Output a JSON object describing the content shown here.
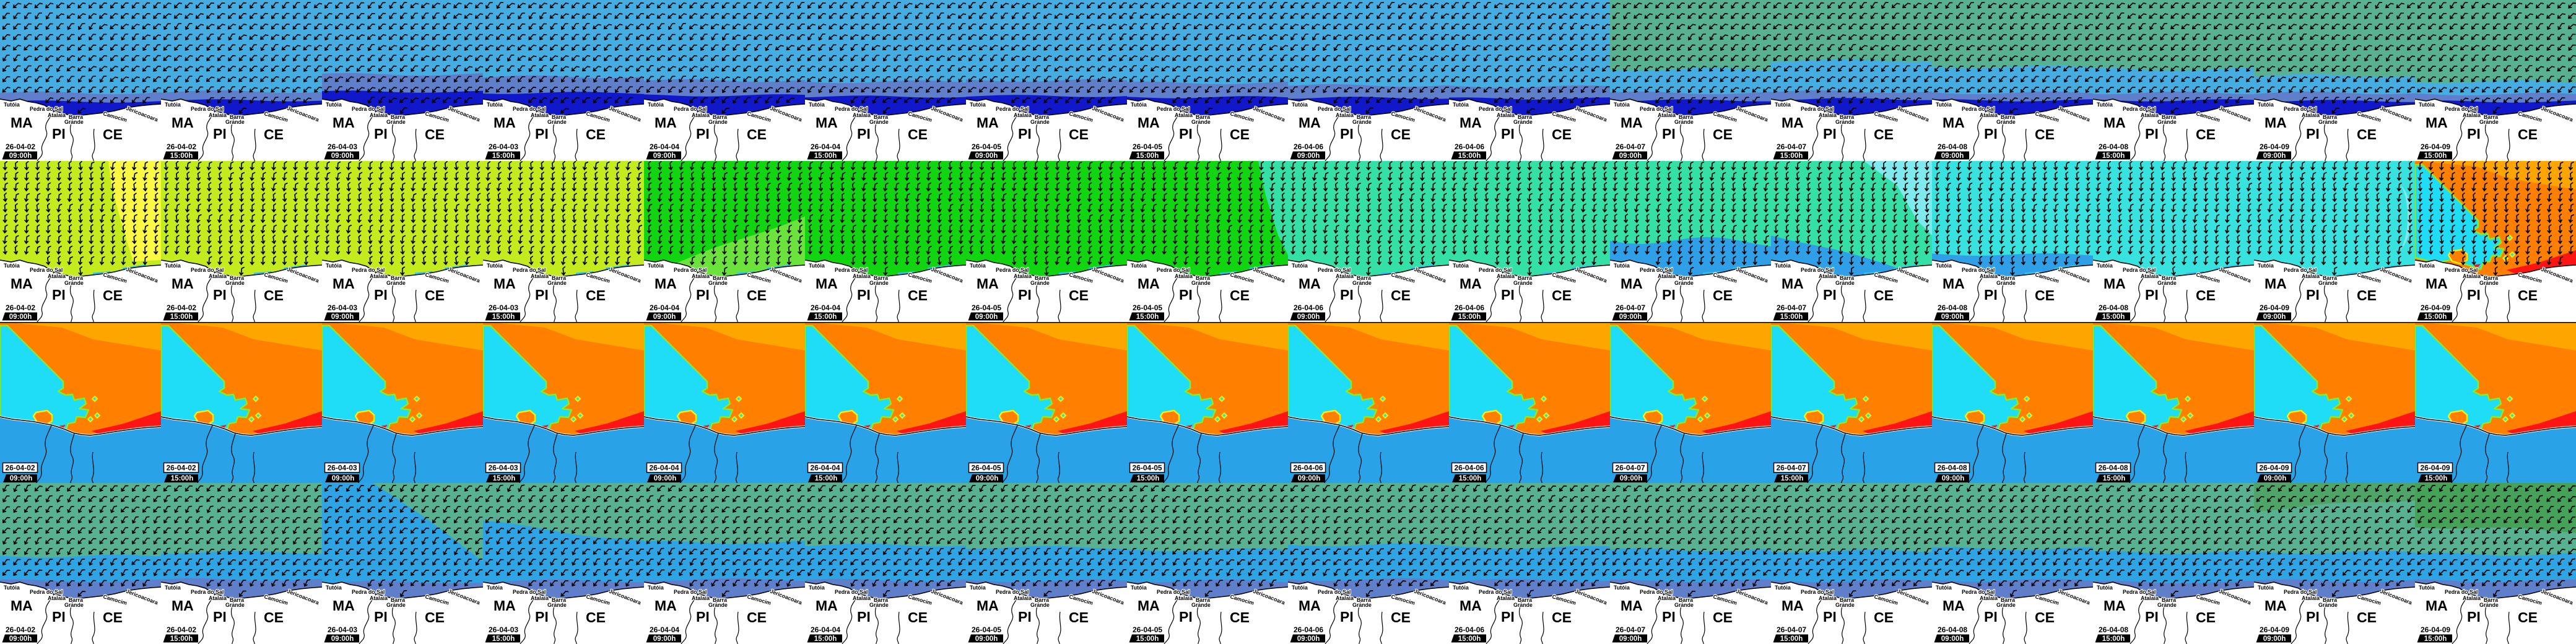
{
  "meta": {
    "description": "Grid of coastal surf/wind forecast map tiles for the MA/PI/CE coastline (Brazil), 16 time steps by 4 variables",
    "columns": 16,
    "rows": 4
  },
  "timesteps": [
    {
      "date": "26-04-02",
      "time": "09:00h"
    },
    {
      "date": "26-04-02",
      "time": "15:00h"
    },
    {
      "date": "26-04-03",
      "time": "09:00h"
    },
    {
      "date": "26-04-03",
      "time": "15:00h"
    },
    {
      "date": "26-04-04",
      "time": "09:00h"
    },
    {
      "date": "26-04-04",
      "time": "15:00h"
    },
    {
      "date": "26-04-05",
      "time": "09:00h"
    },
    {
      "date": "26-04-05",
      "time": "15:00h"
    },
    {
      "date": "26-04-06",
      "time": "09:00h"
    },
    {
      "date": "26-04-06",
      "time": "15:00h"
    },
    {
      "date": "26-04-07",
      "time": "09:00h"
    },
    {
      "date": "26-04-07",
      "time": "15:00h"
    },
    {
      "date": "26-04-08",
      "time": "09:00h"
    },
    {
      "date": "26-04-08",
      "time": "15:00h"
    },
    {
      "date": "26-04-09",
      "time": "09:00h"
    },
    {
      "date": "26-04-09",
      "time": "15:00h"
    }
  ],
  "map": {
    "state_labels": [
      "MA",
      "PI",
      "CE"
    ],
    "place_labels": [
      "Tutóia",
      "Pedra do Sal",
      "Atalaia",
      "Barra",
      "Grande",
      "Camocim",
      "Jericoacoara"
    ]
  },
  "palette": {
    "sea_blue": "#46ADE3",
    "periwinkle": "#5F7FCB",
    "navy": "#1118C9",
    "sage_green": "#58B291",
    "bright_blue": "#2EA4E5",
    "yellow_green": "#C3EB1E",
    "yellow": "#FBF943",
    "bright_green": "#12D512",
    "light_green": "#6CE23C",
    "mint": "#35E0A6",
    "cyan": "#38E2DE",
    "jag_blue": "#2F9FE8",
    "light_cyan": "#7FE9EE",
    "coast_strip_cyan": "#28C8F0",
    "pattern_orange": "#FF8000",
    "pattern_light_orange": "#FFA500",
    "pattern_cyan": "#1FDDF7",
    "pattern_red": "#FF1414",
    "pattern_land_blue": "#2AA2E8",
    "land": "#FFFFFF",
    "ink": "#000000",
    "badge_bg": "#000000",
    "badge_text": "#FFFFFF"
  },
  "rows": [
    {
      "name": "map-row-1",
      "has_arrows": true,
      "arrow_base_rotation": 40,
      "kind": "coast",
      "columns": [
        {
          "top": "#46ADE3",
          "mid": "#46ADE3",
          "l1": null,
          "l2": 150,
          "l3": 164,
          "band": "#5F7FCB",
          "coast": "#1118C9"
        },
        {
          "top": "#46ADE3",
          "mid": "#46ADE3",
          "l1": null,
          "l2": 148,
          "l3": 162,
          "band": "#5F7FCB",
          "coast": "#1118C9"
        },
        {
          "top": "#46ADE3",
          "mid": "#46ADE3",
          "l1": null,
          "l2": 120,
          "l3": 148,
          "band": "#5F7FCB",
          "coast": "#1118C9"
        },
        {
          "top": "#46ADE3",
          "mid": "#46ADE3",
          "l1": null,
          "l2": 124,
          "l3": 150,
          "band": "#5F7FCB",
          "coast": "#1118C9"
        },
        {
          "top": "#46ADE3",
          "mid": "#46ADE3",
          "l1": null,
          "l2": 130,
          "l3": 154,
          "band": "#5F7FCB",
          "coast": "#1118C9"
        },
        {
          "top": "#46ADE3",
          "mid": "#46ADE3",
          "l1": null,
          "l2": 132,
          "l3": 156,
          "band": "#5F7FCB",
          "coast": "#1118C9"
        },
        {
          "top": "#46ADE3",
          "mid": "#46ADE3",
          "l1": null,
          "l2": 130,
          "l3": 155,
          "band": "#5F7FCB",
          "coast": "#1118C9"
        },
        {
          "top": "#46ADE3",
          "mid": "#46ADE3",
          "l1": null,
          "l2": 134,
          "l3": 157,
          "band": "#5F7FCB",
          "coast": "#1118C9"
        },
        {
          "top": "#46ADE3",
          "mid": "#46ADE3",
          "l1": null,
          "l2": 138,
          "l3": 158,
          "band": "#5F7FCB",
          "coast": "#1118C9"
        },
        {
          "top": "#46ADE3",
          "mid": "#46ADE3",
          "l1": null,
          "l2": 140,
          "l3": 159,
          "band": "#5F7FCB",
          "coast": "#1118C9"
        },
        {
          "top": "#58B291",
          "mid": "#46ADE3",
          "l1": 112,
          "l2": 150,
          "l3": 162,
          "band": "#5F7FCB",
          "coast": "#1118C9"
        },
        {
          "top": "#58B291",
          "mid": "#46ADE3",
          "l1": 98,
          "l2": 148,
          "l3": 160,
          "band": "#5F7FCB",
          "coast": "#1118C9"
        },
        {
          "top": "#58B291",
          "mid": "#46ADE3",
          "l1": 108,
          "l2": 150,
          "l3": 162,
          "band": "#5F7FCB",
          "coast": "#1118C9"
        },
        {
          "top": "#58B291",
          "mid": "#46ADE3",
          "l1": 112,
          "l2": 150,
          "l3": 162,
          "band": "#5F7FCB",
          "coast": "#1118C9"
        },
        {
          "top": "#58B291",
          "mid": "#46ADE3",
          "l1": 122,
          "l2": 150,
          "l3": 163,
          "band": "#5F7FCB",
          "coast": "#1118C9"
        },
        {
          "top": "#58B291",
          "mid": "#46ADE3",
          "l1": 132,
          "l2": 152,
          "l3": 164,
          "band": "#5F7FCB",
          "coast": "#1118C9"
        }
      ]
    },
    {
      "name": "map-row-2",
      "has_arrows": true,
      "arrow_base_rotation": 0,
      "kind": "coast",
      "columns": [
        {
          "top": "#C3EB1E",
          "mid": null,
          "l1": null,
          "l2": null,
          "l3": null,
          "overlay": "yellow-right",
          "strips": true
        },
        {
          "top": "#C3EB1E",
          "mid": null,
          "l1": null,
          "l2": null,
          "l3": null,
          "strips": true
        },
        {
          "top": "#C3EB1E",
          "mid": null,
          "l1": null,
          "l2": null,
          "l3": null,
          "strips": true
        },
        {
          "top": "#C3EB1E",
          "mid": null,
          "l1": null,
          "l2": null,
          "l3": null,
          "strips": true
        },
        {
          "top": "#12D512",
          "mid": "#6CE23C",
          "l1": [
            185,
            88
          ],
          "l2": null,
          "l3": null,
          "strips": true
        },
        {
          "top": "#12D512",
          "mid": null,
          "l1": null,
          "l2": null,
          "l3": null,
          "strips": true
        },
        {
          "top": "#12D512",
          "mid": null,
          "l1": null,
          "l2": null,
          "l3": null,
          "strips": true
        },
        {
          "top": "#12D512",
          "mid": null,
          "l1": null,
          "l2": null,
          "l3": null,
          "overlay": "mint-right",
          "strips": true
        },
        {
          "top": "#35E0A6",
          "mid": null,
          "l1": null,
          "l2": null,
          "l3": null,
          "strips": true
        },
        {
          "top": "#35E0A6",
          "mid": null,
          "l1": null,
          "l2": null,
          "l3": null,
          "strips": true
        },
        {
          "top": "#35E0A6",
          "mid": "#2F9FE8",
          "l1": [
            126,
            132
          ],
          "jag": true,
          "l2": null,
          "l3": null,
          "strips": true
        },
        {
          "top": "#35E0A6",
          "mid": "#2F9FE8",
          "l1": [
            118,
            186
          ],
          "l2": null,
          "l3": null,
          "overlay": "cyan-corner",
          "strips": true
        },
        {
          "top": "#38E2DE",
          "mid": "#2F9FE8",
          "l1": [
            150,
            152
          ],
          "l2": null,
          "l3": null,
          "strips": true
        },
        {
          "top": "#38E2DE",
          "mid": null,
          "l1": null,
          "l2": null,
          "l3": null,
          "strips": true
        },
        {
          "top": "#38E2DE",
          "mid": null,
          "l1": null,
          "l2": null,
          "l3": null,
          "overlay": "cyan-arc",
          "strips": true
        },
        {
          "top": "#38E2DE",
          "mid": null,
          "l1": null,
          "l2": null,
          "l3": null,
          "overlay": "period-pattern",
          "strips": false
        }
      ]
    },
    {
      "name": "map-row-3",
      "has_arrows": false,
      "arrow_base_rotation": 0,
      "kind": "pattern",
      "columns": [
        {
          "pattern": true
        },
        {
          "pattern": true
        },
        {
          "pattern": true
        },
        {
          "pattern": true
        },
        {
          "pattern": true
        },
        {
          "pattern": true
        },
        {
          "pattern": true
        },
        {
          "pattern": true
        },
        {
          "pattern": true
        },
        {
          "pattern": true
        },
        {
          "pattern": true
        },
        {
          "pattern": true
        },
        {
          "pattern": true
        },
        {
          "pattern": true
        },
        {
          "pattern": true
        },
        {
          "pattern": true
        }
      ]
    },
    {
      "name": "map-row-4",
      "has_arrows": true,
      "arrow_base_rotation": 34,
      "kind": "coast",
      "columns": [
        {
          "top": "#58B291",
          "mid": "#2EA4E5",
          "l1": 118,
          "l2": 158,
          "l3": null,
          "band": "#5F7FCB"
        },
        {
          "top": "#58B291",
          "mid": "#2EA4E5",
          "l1": 112,
          "l2": 156,
          "l3": null,
          "band": "#5F7FCB"
        },
        {
          "top": "#58B291",
          "mid": "#2EA4E5",
          "l1": [
            -60,
            125
          ],
          "l2": 160,
          "l3": null,
          "band": "#5F7FCB"
        },
        {
          "top": "#58B291",
          "mid": "#2EA4E5",
          "l1": [
            62,
            95
          ],
          "l2": 158,
          "l3": null,
          "band": "#5F7FCB"
        },
        {
          "top": "#58B291",
          "mid": "#2EA4E5",
          "l1": 96,
          "l2": 156,
          "l3": null,
          "band": "#5F7FCB"
        },
        {
          "top": "#58B291",
          "mid": "#2EA4E5",
          "l1": 100,
          "l2": 157,
          "l3": null,
          "band": "#5F7FCB"
        },
        {
          "top": "#58B291",
          "mid": "#2EA4E5",
          "l1": 104,
          "l2": 158,
          "l3": null,
          "band": "#5F7FCB"
        },
        {
          "top": "#58B291",
          "mid": "#2EA4E5",
          "l1": 108,
          "l2": 158,
          "l3": null,
          "band": "#5F7FCB"
        },
        {
          "top": "#58B291",
          "mid": "#2EA4E5",
          "l1": 100,
          "l2": 156,
          "l3": null,
          "band": "#5F7FCB"
        },
        {
          "top": "#58B291",
          "mid": "#2EA4E5",
          "l1": 104,
          "l2": 157,
          "l3": null,
          "band": "#5F7FCB"
        },
        {
          "top": "#58B291",
          "mid": "#2EA4E5",
          "l1": 108,
          "l2": 158,
          "l3": null,
          "band": "#5F7FCB"
        },
        {
          "top": "#58B291",
          "mid": "#2EA4E5",
          "l1": 110,
          "l2": 158,
          "l3": null,
          "band": "#5F7FCB"
        },
        {
          "top": "#58B291",
          "mid": "#2EA4E5",
          "l1": 106,
          "l2": 157,
          "l3": null,
          "band": "#5F7FCB"
        },
        {
          "top": "#58B291",
          "mid": "#2EA4E5",
          "l1": 112,
          "l2": 160,
          "l3": null,
          "band": "#5F7FCB"
        },
        {
          "top": "#58B291",
          "mid": "#2EA4E5",
          "l1": 112,
          "l2": 158,
          "l3": null,
          "band": "#5F7FCB",
          "cap": "#4FA567",
          "l0": [
            44,
            26
          ]
        },
        {
          "top": "#58B291",
          "mid": "#2EA4E5",
          "l1": 115,
          "l2": 158,
          "l3": null,
          "band": "#5F7FCB",
          "cap": "#45A258",
          "l0": [
            70,
            78
          ]
        }
      ]
    }
  ]
}
